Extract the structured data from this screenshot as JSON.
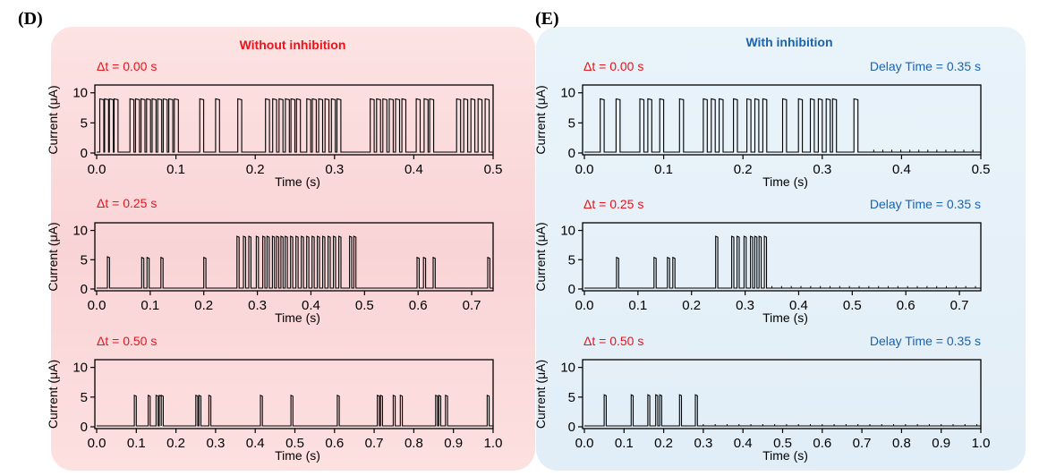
{
  "colors": {
    "left_panel_bg": "#fbdcdc",
    "right_panel_bg": "#e3eff8",
    "left_title_color": "#e8141b",
    "right_title_color": "#1a63b0",
    "dt_color": "#e8141b",
    "delay_color": "#1a63b0",
    "trace_color": "#000000"
  },
  "panels": [
    {
      "label": "(D)",
      "title": "Without inhibition",
      "subplots": [
        {
          "dt_label": "Δt = 0.00 s",
          "delay_label": ""
        },
        {
          "dt_label": "Δt = 0.25 s",
          "delay_label": ""
        },
        {
          "dt_label": "Δt = 0.50 s",
          "delay_label": ""
        }
      ]
    },
    {
      "label": "(E)",
      "title": "With inhibition",
      "subplots": [
        {
          "dt_label": "Δt = 0.00 s",
          "delay_label": "Delay Time = 0.35 s"
        },
        {
          "dt_label": "Δt = 0.25 s",
          "delay_label": "Delay Time = 0.35 s"
        },
        {
          "dt_label": "Δt = 0.50 s",
          "delay_label": "Delay Time = 0.35 s"
        }
      ]
    }
  ],
  "chart_data": [
    {
      "type": "line",
      "panel": "D",
      "subtitle": "Δt = 0.00 s",
      "xlabel": "Time (s)",
      "ylabel": "Current (μA)",
      "xlim": [
        0,
        0.5
      ],
      "ylim": [
        0,
        11
      ],
      "xticks": [
        "0.0",
        "0.1",
        "0.2",
        "0.3",
        "0.4",
        "0.5"
      ],
      "yticks": [
        "0",
        "5",
        "10"
      ],
      "pulse_width": 0.005,
      "baseline": 0.15,
      "pulses": [
        [
          0.004,
          9
        ],
        [
          0.01,
          9
        ],
        [
          0.016,
          9
        ],
        [
          0.022,
          9
        ],
        [
          0.042,
          9
        ],
        [
          0.049,
          9
        ],
        [
          0.056,
          9
        ],
        [
          0.063,
          9
        ],
        [
          0.07,
          9
        ],
        [
          0.077,
          9
        ],
        [
          0.084,
          9
        ],
        [
          0.091,
          9
        ],
        [
          0.098,
          9
        ],
        [
          0.13,
          9
        ],
        [
          0.15,
          9
        ],
        [
          0.178,
          9
        ],
        [
          0.213,
          9
        ],
        [
          0.222,
          9
        ],
        [
          0.23,
          9
        ],
        [
          0.238,
          9
        ],
        [
          0.245,
          9
        ],
        [
          0.252,
          9
        ],
        [
          0.265,
          9
        ],
        [
          0.272,
          9
        ],
        [
          0.28,
          9
        ],
        [
          0.288,
          9
        ],
        [
          0.296,
          9
        ],
        [
          0.303,
          9
        ],
        [
          0.345,
          9
        ],
        [
          0.353,
          9
        ],
        [
          0.361,
          9
        ],
        [
          0.369,
          9
        ],
        [
          0.377,
          9
        ],
        [
          0.385,
          9
        ],
        [
          0.403,
          9
        ],
        [
          0.413,
          9
        ],
        [
          0.42,
          9
        ],
        [
          0.454,
          9
        ],
        [
          0.463,
          9
        ],
        [
          0.472,
          9
        ],
        [
          0.481,
          9
        ],
        [
          0.49,
          9
        ]
      ]
    },
    {
      "type": "line",
      "panel": "D",
      "subtitle": "Δt = 0.25 s",
      "xlabel": "Time (s)",
      "ylabel": "Current (μA)",
      "xlim": [
        0,
        0.74
      ],
      "ylim": [
        0,
        11
      ],
      "xticks": [
        "0.0",
        "0.1",
        "0.2",
        "0.3",
        "0.4",
        "0.5",
        "0.6",
        "0.7"
      ],
      "yticks": [
        "0",
        "5",
        "10"
      ],
      "pulse_width": 0.004,
      "baseline": 0.15,
      "pulses": [
        [
          0.02,
          5.5
        ],
        [
          0.084,
          5.4
        ],
        [
          0.094,
          5.4
        ],
        [
          0.12,
          5.4
        ],
        [
          0.2,
          5.4
        ],
        [
          0.262,
          9
        ],
        [
          0.274,
          9
        ],
        [
          0.284,
          9
        ],
        [
          0.298,
          9
        ],
        [
          0.31,
          9
        ],
        [
          0.318,
          9
        ],
        [
          0.328,
          9
        ],
        [
          0.336,
          9
        ],
        [
          0.344,
          9
        ],
        [
          0.352,
          9
        ],
        [
          0.362,
          9
        ],
        [
          0.372,
          9
        ],
        [
          0.382,
          9
        ],
        [
          0.392,
          9
        ],
        [
          0.402,
          9
        ],
        [
          0.412,
          9
        ],
        [
          0.422,
          9
        ],
        [
          0.432,
          9
        ],
        [
          0.442,
          9
        ],
        [
          0.452,
          9
        ],
        [
          0.472,
          9
        ],
        [
          0.48,
          9
        ],
        [
          0.598,
          5.4
        ],
        [
          0.61,
          5.4
        ],
        [
          0.628,
          5.4
        ],
        [
          0.73,
          5.4
        ]
      ]
    },
    {
      "type": "line",
      "panel": "D",
      "subtitle": "Δt = 0.50 s",
      "xlabel": "Time (s)",
      "ylabel": "Current (μA)",
      "xlim": [
        0,
        1.0
      ],
      "ylim": [
        0,
        11
      ],
      "xticks": [
        "0.0",
        "0.1",
        "0.2",
        "0.3",
        "0.4",
        "0.5",
        "0.6",
        "0.7",
        "0.8",
        "0.9",
        "1.0"
      ],
      "yticks": [
        "0",
        "5",
        "10"
      ],
      "pulse_width": 0.005,
      "baseline": 0.15,
      "pulses": [
        [
          0.095,
          5.3
        ],
        [
          0.13,
          5.3
        ],
        [
          0.15,
          5.3
        ],
        [
          0.158,
          5.3
        ],
        [
          0.163,
          5.3
        ],
        [
          0.25,
          5.3
        ],
        [
          0.258,
          5.3
        ],
        [
          0.283,
          5.3
        ],
        [
          0.413,
          5.3
        ],
        [
          0.49,
          5.3
        ],
        [
          0.607,
          5.3
        ],
        [
          0.708,
          5.3
        ],
        [
          0.716,
          5.3
        ],
        [
          0.748,
          5.3
        ],
        [
          0.766,
          5.3
        ],
        [
          0.855,
          5.3
        ],
        [
          0.863,
          5.3
        ],
        [
          0.88,
          5.3
        ],
        [
          0.985,
          5.3
        ]
      ]
    },
    {
      "type": "line",
      "panel": "E",
      "subtitle": "Δt = 0.00 s",
      "annotation": "Delay Time = 0.35 s",
      "xlabel": "Time (s)",
      "ylabel": "Current (μA)",
      "xlim": [
        0,
        0.5
      ],
      "ylim": [
        0,
        11
      ],
      "xticks": [
        "0.0",
        "0.1",
        "0.2",
        "0.3",
        "0.4",
        "0.5"
      ],
      "yticks": [
        "0",
        "5",
        "10"
      ],
      "pulse_width": 0.005,
      "baseline": 0.15,
      "pulses": [
        [
          0.02,
          9
        ],
        [
          0.04,
          9
        ],
        [
          0.07,
          9
        ],
        [
          0.08,
          9
        ],
        [
          0.095,
          9
        ],
        [
          0.12,
          9
        ],
        [
          0.15,
          9
        ],
        [
          0.16,
          9
        ],
        [
          0.17,
          9
        ],
        [
          0.188,
          9
        ],
        [
          0.205,
          9
        ],
        [
          0.215,
          9
        ],
        [
          0.225,
          9
        ],
        [
          0.25,
          9
        ],
        [
          0.27,
          9
        ],
        [
          0.285,
          9
        ],
        [
          0.295,
          9
        ],
        [
          0.305,
          9
        ],
        [
          0.313,
          9
        ],
        [
          0.34,
          9
        ]
      ],
      "tail_blips": {
        "start": 0.365,
        "end": 0.49,
        "count": 12,
        "height": 0.4
      }
    },
    {
      "type": "line",
      "panel": "E",
      "subtitle": "Δt = 0.25 s",
      "annotation": "Delay Time = 0.35 s",
      "xlabel": "Time (s)",
      "ylabel": "Current (μA)",
      "xlim": [
        0,
        0.74
      ],
      "ylim": [
        0,
        11
      ],
      "xticks": [
        "0.0",
        "0.1",
        "0.2",
        "0.3",
        "0.4",
        "0.5",
        "0.6",
        "0.7"
      ],
      "yticks": [
        "0",
        "5",
        "10"
      ],
      "pulse_width": 0.004,
      "baseline": 0.15,
      "pulses": [
        [
          0.06,
          5.4
        ],
        [
          0.13,
          5.4
        ],
        [
          0.155,
          5.4
        ],
        [
          0.165,
          5.4
        ],
        [
          0.245,
          9
        ],
        [
          0.275,
          9
        ],
        [
          0.285,
          9
        ],
        [
          0.298,
          9
        ],
        [
          0.31,
          9
        ],
        [
          0.318,
          9
        ],
        [
          0.326,
          9
        ],
        [
          0.336,
          9
        ]
      ],
      "tail_blips": {
        "start": 0.35,
        "end": 0.73,
        "count": 22,
        "height": 0.35
      }
    },
    {
      "type": "line",
      "panel": "E",
      "subtitle": "Δt = 0.50 s",
      "annotation": "Delay Time = 0.35 s",
      "xlabel": "Time (s)",
      "ylabel": "Current (μA)",
      "xlim": [
        0,
        1.0
      ],
      "ylim": [
        0,
        11
      ],
      "xticks": [
        "0.0",
        "0.1",
        "0.2",
        "0.3",
        "0.4",
        "0.5",
        "0.6",
        "0.7",
        "0.8",
        "0.9",
        "1.0"
      ],
      "yticks": [
        "0",
        "5",
        "10"
      ],
      "pulse_width": 0.005,
      "baseline": 0.15,
      "pulses": [
        [
          0.05,
          5.4
        ],
        [
          0.118,
          5.4
        ],
        [
          0.16,
          5.4
        ],
        [
          0.18,
          5.4
        ],
        [
          0.19,
          5.4
        ],
        [
          0.24,
          5.4
        ],
        [
          0.28,
          5.4
        ]
      ],
      "tail_blips": {
        "start": 0.3,
        "end": 0.99,
        "count": 24,
        "height": 0.3
      }
    }
  ]
}
